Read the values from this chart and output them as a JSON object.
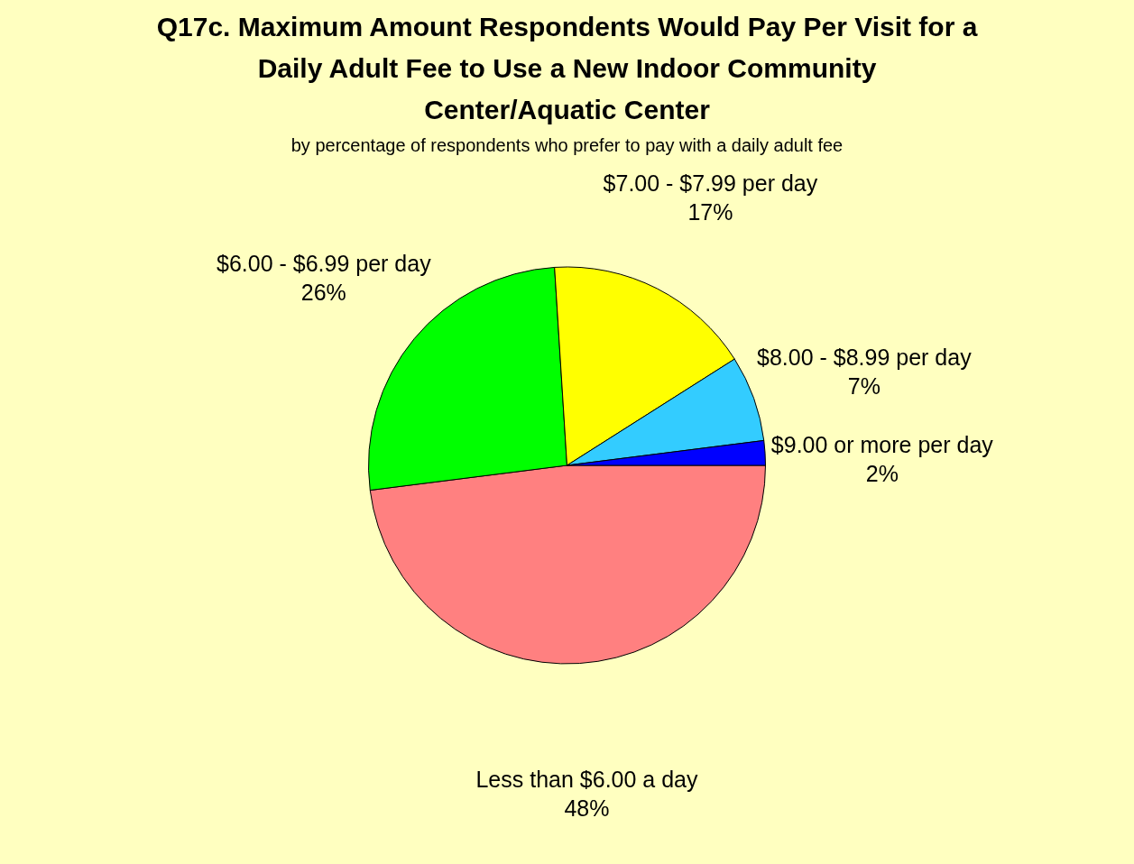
{
  "chart_data": {
    "type": "pie",
    "title": "Q17c. Maximum Amount Respondents Would Pay Per Visit for a Daily Adult Fee to Use a New Indoor Community Center/Aquatic Center",
    "subtitle": "by percentage of respondents who prefer to pay with a daily adult fee",
    "categories": [
      "Less than $6.00 a day",
      "$6.00 - $6.99 per day",
      "$7.00 - $7.99 per day",
      "$8.00 - $8.99 per day",
      "$9.00 or more per day"
    ],
    "values": [
      48,
      26,
      17,
      7,
      2
    ],
    "value_labels": [
      "48%",
      "26%",
      "17%",
      "7%",
      "2%"
    ],
    "colors": [
      "#ff8080",
      "#00ff00",
      "#ffff00",
      "#33ccff",
      "#0000ff"
    ],
    "legend": false
  }
}
